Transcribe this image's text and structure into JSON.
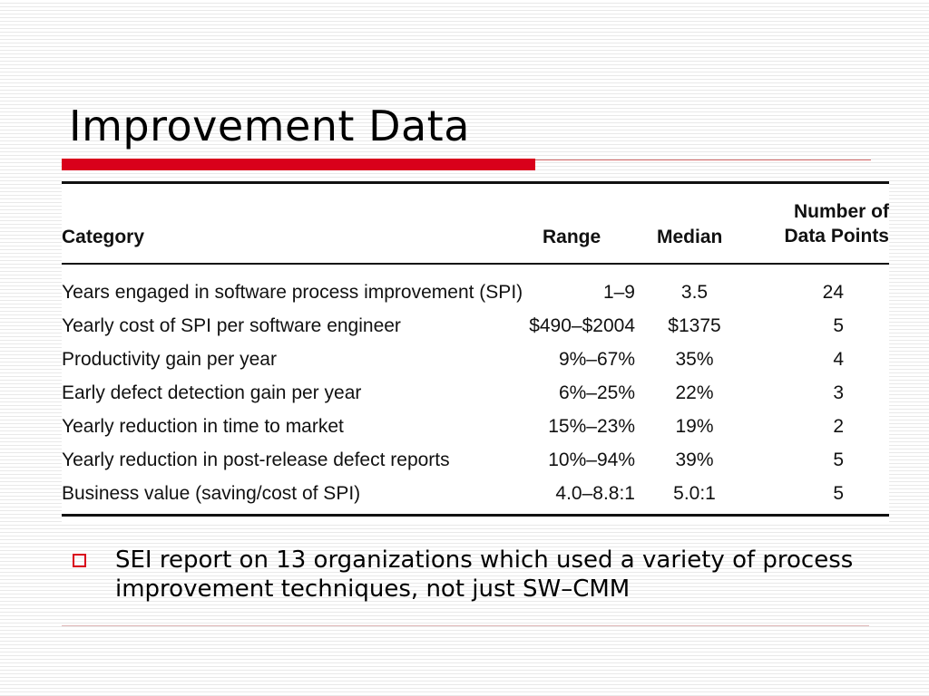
{
  "slide": {
    "title": "Improvement Data",
    "accent_color": "#d9001b",
    "bullet_icon": "hollow-square-bullet",
    "bullet_text": "SEI report on 13 organizations which used a variety of process improvement techniques, not just SW–CMM"
  },
  "table": {
    "headers": {
      "category": "Category",
      "range": "Range",
      "median": "Median",
      "data_points_line1": "Number of",
      "data_points_line2": "Data Points"
    },
    "rows": [
      {
        "category": "Years engaged in software process improvement (SPI)",
        "range": "1–9",
        "median": "3.5",
        "data_points": "24"
      },
      {
        "category": "Yearly cost of SPI per software engineer",
        "range": "$490–$2004",
        "median": "$1375",
        "data_points": "5"
      },
      {
        "category": "Productivity gain per year",
        "range": "9%–67%",
        "median": "35%",
        "data_points": "4"
      },
      {
        "category": "Early defect detection gain per year",
        "range": "6%–25%",
        "median": "22%",
        "data_points": "3"
      },
      {
        "category": "Yearly reduction in time to market",
        "range": "15%–23%",
        "median": "19%",
        "data_points": "2"
      },
      {
        "category": "Yearly reduction in post-release defect reports",
        "range": "10%–94%",
        "median": "39%",
        "data_points": "5"
      },
      {
        "category": "Business value (saving/cost of SPI)",
        "range": "4.0–8.8:1",
        "median": "5.0:1",
        "data_points": "5"
      }
    ]
  }
}
